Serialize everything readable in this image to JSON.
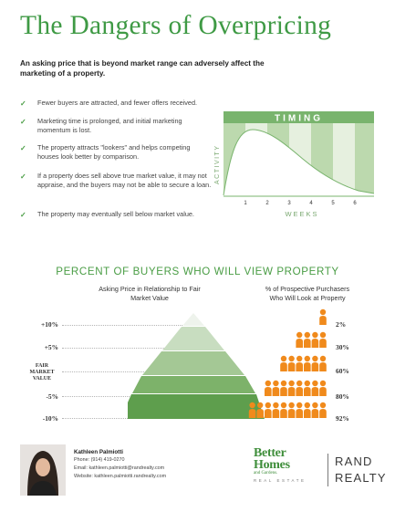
{
  "title": "The Dangers of Overpricing",
  "intro": "An asking price that is beyond market range can adversely affect the marketing of a property.",
  "bullets": [
    "Fewer buyers are attracted, and fewer offers received.",
    "Marketing time is prolonged, and initial marketing momentum is lost.",
    "The property attracts \"lookers\" and helps competing houses look better by comparison.",
    "If a property does sell above true market value, it may not appraise, and the buyers may not be able to secure a loan.",
    "The property may eventually sell below market value."
  ],
  "check_icon": "check-icon",
  "timing_chart": {
    "title": "TIMING",
    "xlabel": "WEEKS",
    "ylabel": "ACTIVITY",
    "ticks": [
      "1",
      "2",
      "3",
      "4",
      "5",
      "6"
    ]
  },
  "view": {
    "title": "PERCENT OF BUYERS WHO WILL VIEW PROPERTY",
    "left_header": "Asking Price in Relationship to Fair Market Value",
    "right_header": "% of Prospective Purchasers Who Will Look at Property",
    "rows": [
      {
        "level": "+10%",
        "percent": "2%",
        "people": 1
      },
      {
        "level": "+5%",
        "percent": "30%",
        "people": 4
      },
      {
        "level": "FAIR MARKET VALUE",
        "percent": "60%",
        "people": 6
      },
      {
        "level": "-5%",
        "percent": "80%",
        "people": 8
      },
      {
        "level": "-10%",
        "percent": "92%",
        "people": 10
      }
    ]
  },
  "agent": {
    "name": "Kathleen Palmiotti",
    "phone": "Phone: (914) 419-0270",
    "email": "Email: kathleen.palmiotti@randrealty.com",
    "website": "Website: kathleen.palmiotti.randrealty.com"
  },
  "logos": {
    "bh_line1": "Better",
    "bh_line2": "Homes",
    "bh_sub": "and Gardens.",
    "bh_re": "REAL ESTATE",
    "rand_line1": "RAND",
    "rand_line2": "REALTY"
  },
  "colors": {
    "green": "#4a9d45",
    "orange": "#f08a1c",
    "timing_bar": "#79b46d"
  }
}
